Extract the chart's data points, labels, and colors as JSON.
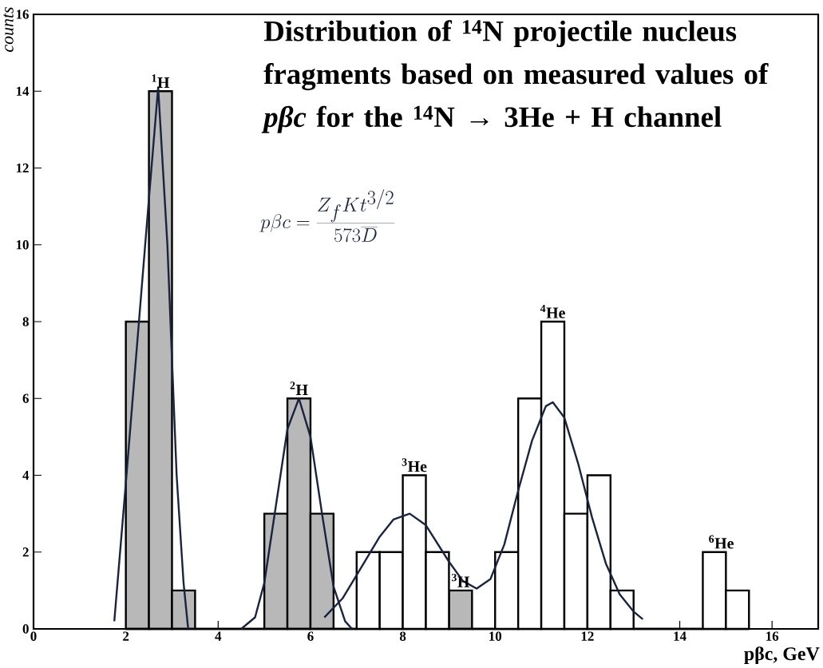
{
  "chart_data": {
    "type": "histogram",
    "title": "Distribution of $^{14}$N projectile nucleus fragments based on measured values of *pβc* for the $^{14}$N → 3He + H channel",
    "xlabel": "pβc, GeV",
    "ylabel": "counts",
    "bins": [
      2,
      2.5,
      3,
      3.5,
      4,
      4.5,
      5,
      5.5,
      6,
      6.5,
      7,
      7.5,
      8,
      8.5,
      9,
      9.5,
      10,
      10.5,
      11,
      11.5,
      12,
      12.5,
      13,
      13.5,
      14,
      14.5,
      15,
      15.5
    ],
    "series": [
      {
        "color": "#b8b8b8",
        "values": [
          8,
          14,
          1,
          0,
          0,
          0,
          3,
          6,
          3,
          0,
          0,
          0,
          0,
          0,
          1,
          0,
          0,
          0,
          0,
          0,
          0,
          0,
          0,
          0,
          0,
          0,
          0
        ]
      },
      {
        "color": "#ffffff",
        "values": [
          0,
          0,
          0,
          0,
          0,
          0,
          0,
          0,
          0,
          0,
          2,
          2,
          4,
          2,
          0,
          0,
          2,
          6,
          8,
          3,
          4,
          1,
          0,
          0,
          0,
          2,
          1
        ]
      },
      {
        "type": "line",
        "color": "#1a2440",
        "x": [
          1.75,
          2.0,
          2.25,
          2.5,
          2.7,
          2.9,
          3.1,
          3.25,
          3.35
        ],
        "values": [
          0.2,
          3.8,
          7.5,
          11.2,
          14.1,
          10,
          4,
          1.2,
          0
        ]
      },
      {
        "type": "line",
        "color": "#1a2440",
        "x": [
          4.5,
          4.8,
          5.0,
          5.25,
          5.5,
          5.75,
          6.0,
          6.25,
          6.5,
          6.75,
          6.9
        ],
        "values": [
          0,
          0.3,
          1.2,
          3.2,
          5.2,
          6,
          5.0,
          3.0,
          1.1,
          0.2,
          0
        ]
      },
      {
        "type": "line",
        "color": "#1a2440",
        "x": [
          6.3,
          6.7,
          7.0,
          7.5,
          7.8,
          8.15,
          8.5,
          9.0,
          9.3,
          9.6,
          9.9,
          10.2,
          10.5,
          10.8,
          11.1,
          11.25,
          11.5,
          11.8,
          12.1,
          12.4,
          12.7,
          13.0,
          13.2
        ],
        "values": [
          0.3,
          0.8,
          1.4,
          2.4,
          2.85,
          3.0,
          2.7,
          1.75,
          1.25,
          1.05,
          1.3,
          2.2,
          3.6,
          4.9,
          5.8,
          5.9,
          5.5,
          4.3,
          2.9,
          1.7,
          0.9,
          0.45,
          0.25
        ]
      }
    ],
    "annotations": [
      {
        "text": "$^{1}$H",
        "x": 2.75,
        "y": 14
      },
      {
        "text": "$^{2}$H",
        "x": 5.75,
        "y": 6
      },
      {
        "text": "$^{3}$He",
        "x": 8.25,
        "y": 4
      },
      {
        "text": "$^{3}$H",
        "x": 9.25,
        "y": 1
      },
      {
        "text": "$^{4}$He",
        "x": 11.25,
        "y": 8
      },
      {
        "text": "$^{6}$He",
        "x": 14.9,
        "y": 2
      },
      "p\\beta c = \\frac{Z_{f} K t^{3/2}}{573\\overline{D}}"
    ],
    "xlim": [
      0,
      17
    ],
    "ylim": [
      0,
      16
    ],
    "xticks": [
      0,
      2,
      4,
      6,
      8,
      10,
      12,
      14,
      16
    ],
    "yticks": [
      0,
      2,
      4,
      6,
      8,
      10,
      12,
      14,
      16
    ],
    "grid": false
  }
}
